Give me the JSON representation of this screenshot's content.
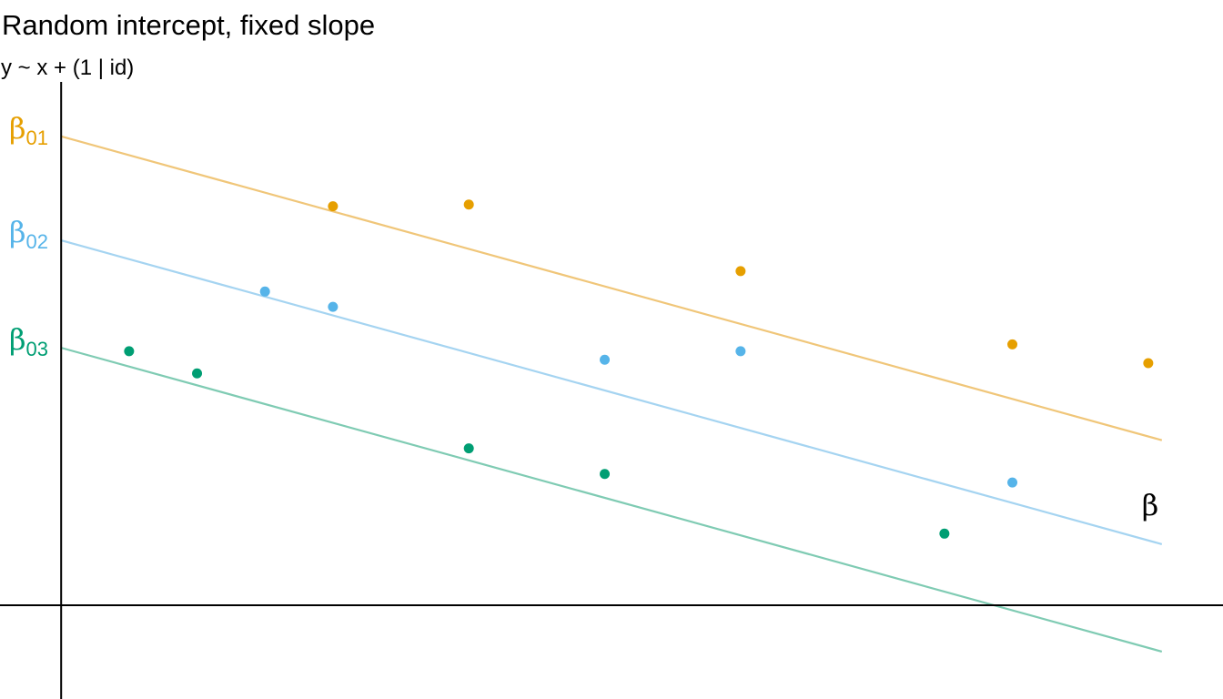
{
  "chart_data": {
    "type": "scatter",
    "title": "Random intercept, fixed slope",
    "subtitle": "y ~ x + (1 | id)",
    "xlabel": "",
    "ylabel": "",
    "grid": false,
    "xlim": [
      -0.45,
      8.55
    ],
    "ylim": [
      -0.55,
      3.55
    ],
    "slope": -0.22,
    "slope_label": {
      "symbol": "β",
      "sub": ""
    },
    "series": [
      {
        "intercept": 2.75,
        "color": "#E69F00",
        "line_color": "#F0C679",
        "label": {
          "symbol": "β",
          "sub": "01"
        },
        "points": [
          [
            2,
            2.34
          ],
          [
            3,
            2.35
          ],
          [
            5,
            1.96
          ],
          [
            7,
            1.53
          ],
          [
            8,
            1.42
          ]
        ]
      },
      {
        "intercept": 2.14,
        "color": "#56B4E9",
        "line_color": "#A5D4F1",
        "label": {
          "symbol": "β",
          "sub": "02"
        },
        "points": [
          [
            1.5,
            1.84
          ],
          [
            2,
            1.75
          ],
          [
            4,
            1.44
          ],
          [
            5,
            1.49
          ],
          [
            7,
            0.72
          ]
        ]
      },
      {
        "intercept": 1.51,
        "color": "#009E73",
        "line_color": "#7FCBB3",
        "label": {
          "symbol": "β",
          "sub": "03"
        },
        "points": [
          [
            0.5,
            1.49
          ],
          [
            1,
            1.36
          ],
          [
            3,
            0.92
          ],
          [
            4,
            0.77
          ],
          [
            6.5,
            0.42
          ]
        ]
      }
    ]
  }
}
